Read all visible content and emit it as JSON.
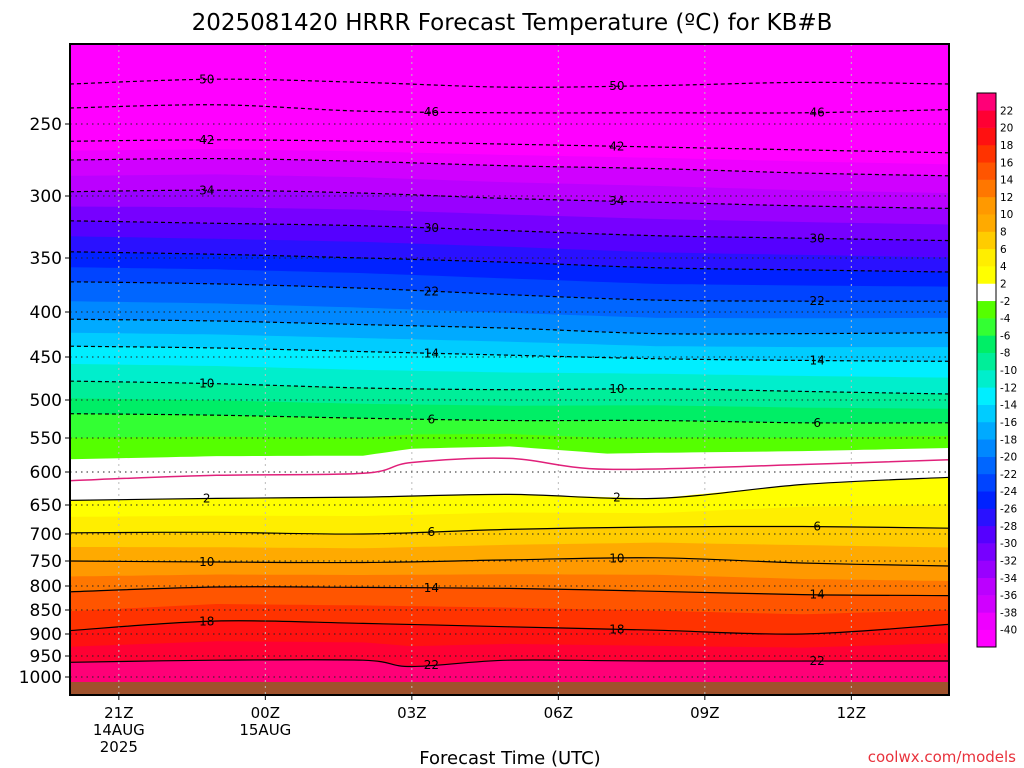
{
  "chart_data": {
    "type": "heatmap",
    "title": "2025081420 HRRR Forecast Temperature (ºC) for KB#B",
    "xlabel": "Forecast Time (UTC)",
    "ylabel": "",
    "credit": "coolwx.com/models",
    "x_ticks": [
      {
        "label": "21Z",
        "sub": [
          "14AUG",
          "2025"
        ],
        "hour": 0
      },
      {
        "label": "00Z",
        "sub": [
          "15AUG"
        ],
        "hour": 3
      },
      {
        "label": "03Z",
        "sub": [],
        "hour": 6
      },
      {
        "label": "06Z",
        "sub": [],
        "hour": 9
      },
      {
        "label": "09Z",
        "sub": [],
        "hour": 12
      },
      {
        "label": "12Z",
        "sub": [],
        "hour": 15
      }
    ],
    "xlim": [
      -1,
      17
    ],
    "y_ticks": [
      250,
      300,
      350,
      400,
      450,
      500,
      550,
      600,
      650,
      700,
      750,
      800,
      850,
      900,
      950,
      1000
    ],
    "ylim_hPa": [
      1025,
      200
    ],
    "colorbar": {
      "levels": [
        -40,
        -38,
        -36,
        -34,
        -32,
        -30,
        -28,
        -26,
        -24,
        -22,
        -20,
        -18,
        -16,
        -14,
        -12,
        -10,
        -8,
        -6,
        -4,
        -2,
        2,
        4,
        6,
        8,
        10,
        12,
        14,
        16,
        18,
        20,
        22
      ],
      "colors": [
        "#ff00ff",
        "#ee00ff",
        "#d000ff",
        "#bb00ff",
        "#9900ff",
        "#7700ff",
        "#5500ff",
        "#2a11ff",
        "#0022ff",
        "#0044ff",
        "#0066ff",
        "#0088ff",
        "#00aaff",
        "#00ccff",
        "#00eeff",
        "#00eecc",
        "#00ee99",
        "#00ee66",
        "#33ff33",
        "#55ff00",
        "#ffffff",
        "#ffff00",
        "#ffee00",
        "#ffcc00",
        "#ffaa00",
        "#ff9900",
        "#ff7700",
        "#ff5500",
        "#ff3300",
        "#ff1111",
        "#ff0033",
        "#ff0077"
      ]
    },
    "ground_color": "#a0522d",
    "contours": [
      {
        "value": -50,
        "label": "50",
        "pts": [
          [
            -1,
            225
          ],
          [
            2,
            222
          ],
          [
            5,
            224
          ],
          [
            8,
            227
          ],
          [
            11,
            226
          ],
          [
            14,
            224
          ],
          [
            17,
            225
          ]
        ]
      },
      {
        "value": -46,
        "label": "46",
        "pts": [
          [
            -1,
            240
          ],
          [
            2,
            238
          ],
          [
            5,
            242
          ],
          [
            8,
            243
          ],
          [
            11,
            243
          ],
          [
            14,
            243
          ],
          [
            17,
            241
          ]
        ]
      },
      {
        "value": -42,
        "label": "42",
        "pts": [
          [
            -1,
            262
          ],
          [
            2,
            261
          ],
          [
            5,
            262
          ],
          [
            8,
            264
          ],
          [
            11,
            266
          ],
          [
            14,
            268
          ],
          [
            17,
            270
          ]
        ]
      },
      {
        "value": -38,
        "label": "",
        "pts": [
          [
            -1,
            275
          ],
          [
            2,
            274
          ],
          [
            5,
            276
          ],
          [
            8,
            279
          ],
          [
            11,
            281
          ],
          [
            14,
            284
          ],
          [
            17,
            286
          ]
        ]
      },
      {
        "value": -34,
        "label": "34",
        "pts": [
          [
            -1,
            297
          ],
          [
            2,
            296
          ],
          [
            5,
            298
          ],
          [
            8,
            302
          ],
          [
            11,
            305
          ],
          [
            14,
            308
          ],
          [
            17,
            310
          ]
        ]
      },
      {
        "value": -30,
        "label": "30",
        "pts": [
          [
            -1,
            320
          ],
          [
            2,
            322
          ],
          [
            5,
            324
          ],
          [
            8,
            328
          ],
          [
            11,
            332
          ],
          [
            14,
            334
          ],
          [
            17,
            336
          ]
        ]
      },
      {
        "value": -26,
        "label": "",
        "pts": [
          [
            -1,
            345
          ],
          [
            2,
            347
          ],
          [
            5,
            350
          ],
          [
            8,
            354
          ],
          [
            11,
            359
          ],
          [
            14,
            361
          ],
          [
            17,
            363
          ]
        ]
      },
      {
        "value": -22,
        "label": "22",
        "pts": [
          [
            -1,
            372
          ],
          [
            2,
            374
          ],
          [
            5,
            378
          ],
          [
            8,
            384
          ],
          [
            11,
            389
          ],
          [
            14,
            390
          ],
          [
            17,
            390
          ]
        ]
      },
      {
        "value": -18,
        "label": "",
        "pts": [
          [
            -1,
            408
          ],
          [
            2,
            410
          ],
          [
            5,
            414
          ],
          [
            8,
            418
          ],
          [
            11,
            424
          ],
          [
            14,
            424
          ],
          [
            17,
            423
          ]
        ]
      },
      {
        "value": -14,
        "label": "14",
        "pts": [
          [
            -1,
            438
          ],
          [
            2,
            440
          ],
          [
            5,
            444
          ],
          [
            8,
            448
          ],
          [
            11,
            452
          ],
          [
            14,
            454
          ],
          [
            17,
            455
          ]
        ]
      },
      {
        "value": -10,
        "label": "10",
        "pts": [
          [
            -1,
            478
          ],
          [
            2,
            481
          ],
          [
            5,
            486
          ],
          [
            8,
            488
          ],
          [
            11,
            487
          ],
          [
            14,
            490
          ],
          [
            17,
            493
          ]
        ]
      },
      {
        "value": -6,
        "label": "6",
        "pts": [
          [
            -1,
            518
          ],
          [
            2,
            520
          ],
          [
            5,
            524
          ],
          [
            8,
            527
          ],
          [
            11,
            527
          ],
          [
            14,
            530
          ],
          [
            17,
            530
          ]
        ]
      },
      {
        "value": 2,
        "label": "2",
        "pts": [
          [
            -1,
            643
          ],
          [
            2,
            640
          ],
          [
            5,
            638
          ],
          [
            8,
            634
          ],
          [
            11,
            640
          ],
          [
            14,
            619
          ],
          [
            17,
            608
          ]
        ]
      },
      {
        "value": 6,
        "label": "6",
        "pts": [
          [
            -1,
            698
          ],
          [
            2,
            697
          ],
          [
            5,
            700
          ],
          [
            8,
            692
          ],
          [
            11,
            688
          ],
          [
            14,
            687
          ],
          [
            17,
            690
          ]
        ]
      },
      {
        "value": 10,
        "label": "10",
        "pts": [
          [
            -1,
            750
          ],
          [
            2,
            752
          ],
          [
            5,
            753
          ],
          [
            8,
            748
          ],
          [
            11,
            744
          ],
          [
            14,
            754
          ],
          [
            17,
            760
          ]
        ]
      },
      {
        "value": 14,
        "label": "14",
        "pts": [
          [
            -1,
            812
          ],
          [
            2,
            802
          ],
          [
            5,
            803
          ],
          [
            8,
            805
          ],
          [
            11,
            811
          ],
          [
            14,
            818
          ],
          [
            17,
            820
          ]
        ]
      },
      {
        "value": 18,
        "label": "18",
        "pts": [
          [
            -1,
            893
          ],
          [
            2,
            873
          ],
          [
            5,
            878
          ],
          [
            8,
            885
          ],
          [
            11,
            892
          ],
          [
            14,
            900
          ],
          [
            17,
            880
          ]
        ]
      },
      {
        "value": 22,
        "label": "22",
        "pts": [
          [
            -1,
            965
          ],
          [
            2,
            960
          ],
          [
            5,
            960
          ],
          [
            6,
            975
          ],
          [
            8,
            960
          ],
          [
            11,
            962
          ],
          [
            17,
            962
          ]
        ]
      }
    ],
    "zero_line": {
      "value": 0,
      "pts": [
        [
          -1,
          613
        ],
        [
          2,
          605
        ],
        [
          5,
          602
        ],
        [
          6,
          586
        ],
        [
          8,
          580
        ],
        [
          10,
          596
        ],
        [
          14,
          589
        ],
        [
          17,
          582
        ]
      ]
    },
    "grid": true,
    "legend": "right colorbar"
  }
}
